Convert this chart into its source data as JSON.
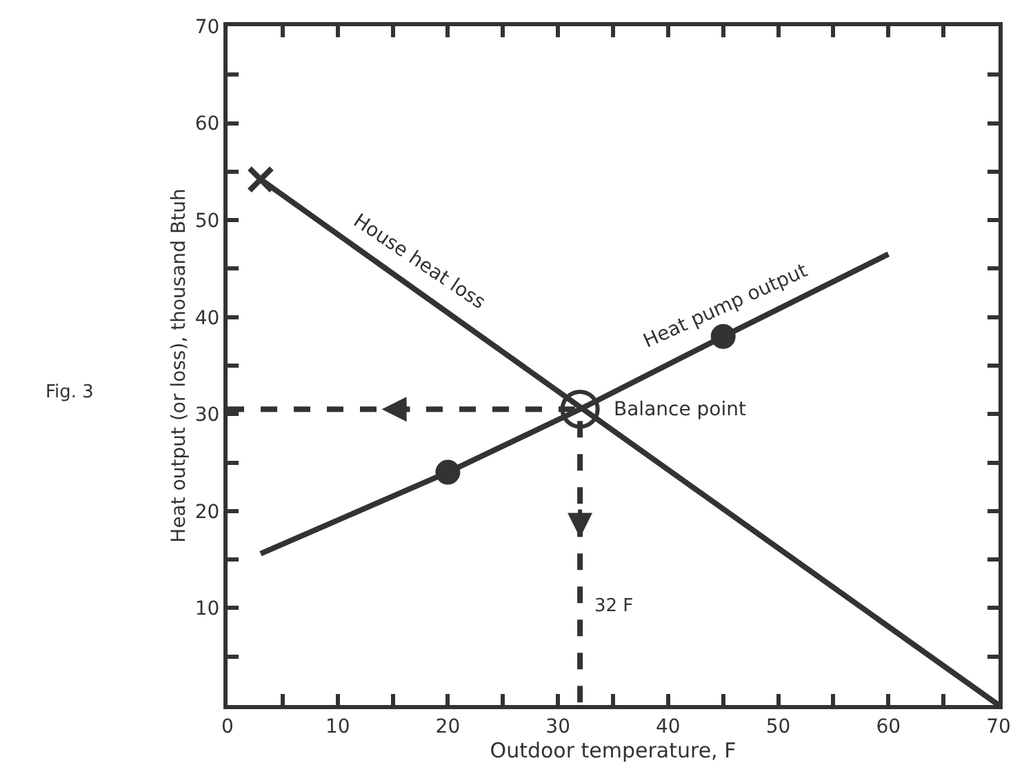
{
  "chart_data": {
    "type": "line",
    "xlabel": "Outdoor temperature, F",
    "ylabel": "Heat output (or loss), thousand Btuh",
    "xlim": [
      0,
      70
    ],
    "ylim": [
      0,
      70
    ],
    "xticks": [
      0,
      {
        "value": 5,
        "label": null
      },
      10,
      {
        "value": 15,
        "label": null
      },
      20,
      {
        "value": 25,
        "label": null
      },
      30,
      {
        "value": 35,
        "label": null
      },
      40,
      {
        "value": 45,
        "label": null
      },
      50,
      {
        "value": 55,
        "label": null
      },
      60,
      {
        "value": 65,
        "label": null
      },
      70
    ],
    "yticks": [
      {
        "value": 5,
        "label": null
      },
      10,
      {
        "value": 15,
        "label": null
      },
      20,
      {
        "value": 25,
        "label": null
      },
      30,
      {
        "value": 35,
        "label": null
      },
      40,
      {
        "value": 45,
        "label": null
      },
      50,
      {
        "value": 55,
        "label": null
      },
      60,
      {
        "value": 65,
        "label": null
      },
      70
    ],
    "series": [
      {
        "name": "House heat loss",
        "color": "#333333",
        "x": [
          3,
          70
        ],
        "values": [
          54.2,
          0
        ],
        "marker": "none",
        "line_style": "solid"
      },
      {
        "name": "Heat pump output",
        "color": "#333333",
        "x": [
          3,
          20,
          32,
          45,
          60
        ],
        "values": [
          15.6,
          24,
          30.5,
          38,
          46.5
        ],
        "marker": "none",
        "line_style": "solid"
      },
      {
        "type": "scatter",
        "color": "#333333",
        "x": [
          20,
          45
        ],
        "values": [
          24,
          38
        ],
        "marker": "circle"
      },
      {
        "type": "scatter",
        "color": "#333333",
        "x": [
          3
        ],
        "values": [
          54.2
        ],
        "marker": "cross"
      },
      {
        "color": "#333333",
        "x": [
          0,
          32,
          32
        ],
        "values": [
          30.5,
          30.5,
          0
        ],
        "marker": "none",
        "line_style": "dashed"
      }
    ],
    "annotations": [
      {
        "text": "Balance point",
        "x": 32,
        "y": 30.5
      },
      "32 F",
      "Fig. 3"
    ]
  }
}
